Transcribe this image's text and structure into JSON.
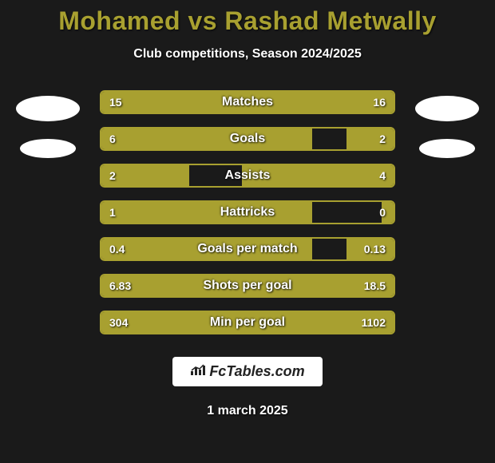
{
  "title": "Mohamed vs Rashad Metwally",
  "subtitle": "Club competitions, Season 2024/2025",
  "date": "1 march 2025",
  "logo_text": "FcTables.com",
  "colors": {
    "left": "#a8a030",
    "right": "#a8a030",
    "border": "#a8a030",
    "bg": "#1a1a1a"
  },
  "stats": [
    {
      "label": "Matches",
      "left_val": "15",
      "right_val": "16",
      "left_pct": 48,
      "right_pct": 52
    },
    {
      "label": "Goals",
      "left_val": "6",
      "right_val": "2",
      "left_pct": 72,
      "right_pct": 16
    },
    {
      "label": "Assists",
      "left_val": "2",
      "right_val": "4",
      "left_pct": 30,
      "right_pct": 52
    },
    {
      "label": "Hattricks",
      "left_val": "1",
      "right_val": "0",
      "left_pct": 72,
      "right_pct": 4
    },
    {
      "label": "Goals per match",
      "left_val": "0.4",
      "right_val": "0.13",
      "left_pct": 72,
      "right_pct": 16
    },
    {
      "label": "Shots per goal",
      "left_val": "6.83",
      "right_val": "18.5",
      "left_pct": 30,
      "right_pct": 70
    },
    {
      "label": "Min per goal",
      "left_val": "304",
      "right_val": "1102",
      "left_pct": 22,
      "right_pct": 78
    }
  ]
}
